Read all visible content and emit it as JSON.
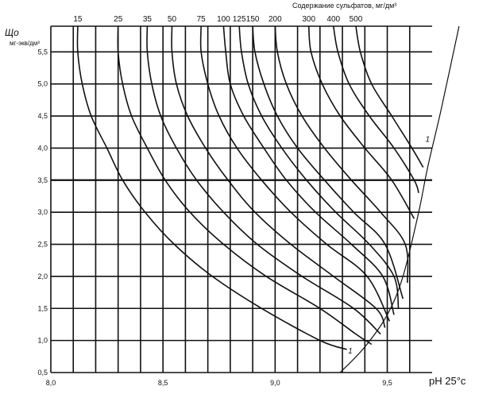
{
  "chart_data": {
    "type": "line",
    "xlabel": "pH 25°c",
    "ylabel": "Що",
    "yunit": "мг-экв/дм³",
    "top_title": "Содержание сульфатов, мг/дм³",
    "xlim": [
      8.0,
      9.7
    ],
    "ylim": [
      0.5,
      5.9
    ],
    "x_ticks": [
      {
        "v": 8.0,
        "label": "8,0"
      },
      {
        "v": 8.5,
        "label": "8,5"
      },
      {
        "v": 9.0,
        "label": "9,0"
      },
      {
        "v": 9.5,
        "label": "9,5"
      }
    ],
    "y_ticks": [
      {
        "v": 0.5,
        "label": "0,5"
      },
      {
        "v": 1.0,
        "label": "1,0"
      },
      {
        "v": 1.5,
        "label": "1,5"
      },
      {
        "v": 2.0,
        "label": "2,0"
      },
      {
        "v": 2.5,
        "label": "2,5"
      },
      {
        "v": 3.0,
        "label": "3,0"
      },
      {
        "v": 3.5,
        "label": "3,5"
      },
      {
        "v": 4.0,
        "label": "4,0"
      },
      {
        "v": 4.5,
        "label": "4,5"
      },
      {
        "v": 5.0,
        "label": "5,0"
      },
      {
        "v": 5.5,
        "label": "5,5"
      }
    ],
    "curve_label": "1",
    "series": [
      {
        "name": "15",
        "points": [
          [
            8.12,
            5.9
          ],
          [
            8.12,
            5.5
          ],
          [
            8.14,
            5.0
          ],
          [
            8.18,
            4.5
          ],
          [
            8.25,
            4.0
          ],
          [
            8.32,
            3.5
          ],
          [
            8.42,
            3.0
          ],
          [
            8.55,
            2.5
          ],
          [
            8.72,
            2.0
          ],
          [
            8.94,
            1.5
          ],
          [
            9.2,
            1.0
          ],
          [
            9.32,
            0.86
          ]
        ]
      },
      {
        "name": "25",
        "points": [
          [
            8.3,
            5.9
          ],
          [
            8.3,
            5.5
          ],
          [
            8.32,
            5.0
          ],
          [
            8.36,
            4.5
          ],
          [
            8.43,
            4.0
          ],
          [
            8.51,
            3.5
          ],
          [
            8.62,
            3.0
          ],
          [
            8.77,
            2.5
          ],
          [
            8.96,
            2.0
          ],
          [
            9.2,
            1.5
          ],
          [
            9.36,
            1.1
          ],
          [
            9.43,
            0.94
          ]
        ]
      },
      {
        "name": "35",
        "points": [
          [
            8.43,
            5.9
          ],
          [
            8.43,
            5.5
          ],
          [
            8.45,
            5.0
          ],
          [
            8.49,
            4.5
          ],
          [
            8.56,
            4.0
          ],
          [
            8.65,
            3.5
          ],
          [
            8.77,
            3.0
          ],
          [
            8.92,
            2.5
          ],
          [
            9.12,
            2.0
          ],
          [
            9.35,
            1.5
          ],
          [
            9.47,
            1.1
          ]
        ]
      },
      {
        "name": "50",
        "points": [
          [
            8.54,
            5.9
          ],
          [
            8.54,
            5.5
          ],
          [
            8.56,
            5.0
          ],
          [
            8.61,
            4.5
          ],
          [
            8.69,
            4.0
          ],
          [
            8.79,
            3.5
          ],
          [
            8.91,
            3.0
          ],
          [
            9.07,
            2.5
          ],
          [
            9.26,
            2.0
          ],
          [
            9.45,
            1.5
          ],
          [
            9.49,
            1.2
          ]
        ]
      },
      {
        "name": "75",
        "points": [
          [
            8.67,
            5.9
          ],
          [
            8.67,
            5.5
          ],
          [
            8.7,
            5.0
          ],
          [
            8.75,
            4.5
          ],
          [
            8.83,
            4.0
          ],
          [
            8.94,
            3.5
          ],
          [
            9.07,
            3.0
          ],
          [
            9.23,
            2.5
          ],
          [
            9.41,
            2.0
          ],
          [
            9.51,
            1.3
          ]
        ]
      },
      {
        "name": "100",
        "points": [
          [
            8.77,
            5.9
          ],
          [
            8.78,
            5.5
          ],
          [
            8.8,
            5.0
          ],
          [
            8.86,
            4.5
          ],
          [
            8.95,
            4.0
          ],
          [
            9.05,
            3.5
          ],
          [
            9.18,
            3.0
          ],
          [
            9.34,
            2.5
          ],
          [
            9.48,
            2.0
          ],
          [
            9.53,
            1.4
          ]
        ]
      },
      {
        "name": "125",
        "points": [
          [
            8.84,
            5.9
          ],
          [
            8.85,
            5.5
          ],
          [
            8.88,
            5.0
          ],
          [
            8.94,
            4.5
          ],
          [
            9.03,
            4.0
          ],
          [
            9.14,
            3.5
          ],
          [
            9.27,
            3.0
          ],
          [
            9.42,
            2.5
          ],
          [
            9.53,
            2.0
          ],
          [
            9.55,
            1.5
          ]
        ]
      },
      {
        "name": "150",
        "points": [
          [
            8.9,
            5.9
          ],
          [
            8.91,
            5.5
          ],
          [
            8.95,
            5.0
          ],
          [
            9.01,
            4.5
          ],
          [
            9.1,
            4.0
          ],
          [
            9.22,
            3.5
          ],
          [
            9.35,
            3.0
          ],
          [
            9.49,
            2.5
          ],
          [
            9.57,
            1.65
          ]
        ]
      },
      {
        "name": "200",
        "points": [
          [
            9.0,
            5.9
          ],
          [
            9.01,
            5.5
          ],
          [
            9.05,
            5.0
          ],
          [
            9.12,
            4.5
          ],
          [
            9.22,
            4.0
          ],
          [
            9.34,
            3.5
          ],
          [
            9.47,
            3.0
          ],
          [
            9.58,
            2.5
          ],
          [
            9.59,
            1.9
          ]
        ]
      },
      {
        "name": "300",
        "points": [
          [
            9.15,
            5.9
          ],
          [
            9.16,
            5.5
          ],
          [
            9.21,
            5.0
          ],
          [
            9.29,
            4.5
          ],
          [
            9.4,
            4.0
          ],
          [
            9.52,
            3.5
          ],
          [
            9.62,
            2.9
          ]
        ]
      },
      {
        "name": "400",
        "points": [
          [
            9.26,
            5.9
          ],
          [
            9.28,
            5.5
          ],
          [
            9.33,
            5.0
          ],
          [
            9.42,
            4.5
          ],
          [
            9.53,
            4.0
          ],
          [
            9.62,
            3.5
          ],
          [
            9.64,
            3.3
          ]
        ]
      },
      {
        "name": "500",
        "points": [
          [
            9.36,
            5.9
          ],
          [
            9.38,
            5.5
          ],
          [
            9.43,
            5.0
          ],
          [
            9.52,
            4.5
          ],
          [
            9.61,
            4.0
          ],
          [
            9.66,
            3.7
          ]
        ]
      }
    ],
    "boundary": [
      [
        9.29,
        0.5
      ],
      [
        9.4,
        0.9
      ],
      [
        9.5,
        1.4
      ],
      [
        9.57,
        2.0
      ],
      [
        9.64,
        3.0
      ],
      [
        9.68,
        3.7
      ],
      [
        9.74,
        4.6
      ],
      [
        9.82,
        5.9
      ]
    ]
  }
}
